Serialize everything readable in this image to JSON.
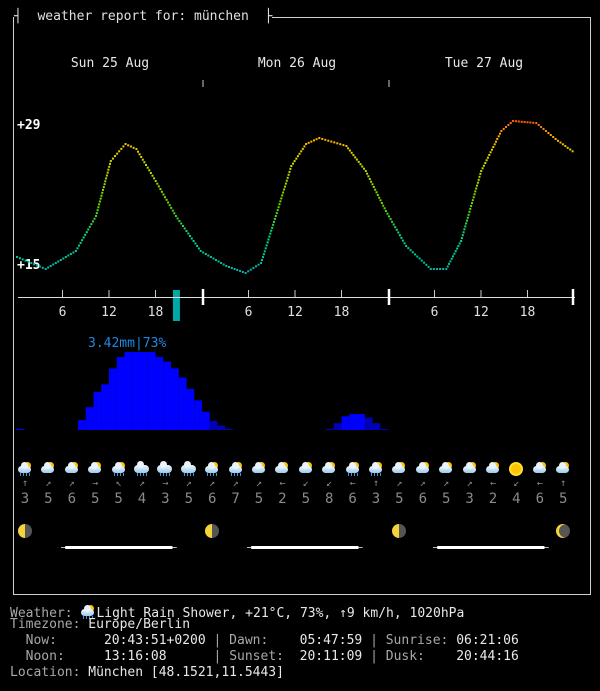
{
  "header": {
    "title": "weather report for: münchen",
    "left_cap": "┤",
    "right_cap": "├"
  },
  "days": [
    "Sun 25 Aug",
    "Mon 26 Aug",
    "Tue 27 Aug"
  ],
  "hour_ticks": [
    "6",
    "12",
    "18"
  ],
  "temp_axis": {
    "max_label": "+29",
    "min_label": "+15",
    "max": 29,
    "min": 15
  },
  "colors": {
    "precip": "#0000ff",
    "precip_dim": "#0000b4",
    "now_marker": "#00a8a8",
    "precip_label": "#1e88e5"
  },
  "chart_data": {
    "type": "line",
    "temperature": {
      "unit": "°C",
      "points": [
        [
          0,
          16
        ],
        [
          3.7,
          14.8
        ],
        [
          7.6,
          16.6
        ],
        [
          10.2,
          20.1
        ],
        [
          12.1,
          25.6
        ],
        [
          14,
          27.3
        ],
        [
          15.4,
          26.8
        ],
        [
          17.9,
          23.6
        ],
        [
          20.5,
          20.1
        ],
        [
          23.7,
          16.6
        ],
        [
          27,
          15.1
        ],
        [
          29.5,
          14.4
        ],
        [
          31.5,
          15.4
        ],
        [
          33.4,
          20.1
        ],
        [
          35.4,
          25.1
        ],
        [
          37.3,
          27.3
        ],
        [
          39,
          27.9
        ],
        [
          42.5,
          27.1
        ],
        [
          45,
          24.6
        ],
        [
          47.6,
          20.6
        ],
        [
          50.2,
          17.1
        ],
        [
          53.4,
          14.8
        ],
        [
          55.4,
          14.8
        ],
        [
          57.3,
          17.6
        ],
        [
          59.9,
          24.6
        ],
        [
          62.5,
          28.6
        ],
        [
          64,
          29.6
        ],
        [
          67,
          29.4
        ],
        [
          69.5,
          27.8
        ],
        [
          72,
          26.4
        ]
      ]
    },
    "precipitation": {
      "unit": "mm",
      "max_label": "3.42mm|73%",
      "max": 3.42,
      "hourly": [
        0.05,
        0,
        0,
        0,
        0,
        0,
        0,
        0,
        0.44,
        1.0,
        1.67,
        2.0,
        2.7,
        3.2,
        3.42,
        3.42,
        3.42,
        3.42,
        3.2,
        3.0,
        2.7,
        2.3,
        1.8,
        1.3,
        0.8,
        0.4,
        0.2,
        0.05,
        0,
        0,
        0,
        0,
        0,
        0,
        0,
        0,
        0,
        0,
        0,
        0,
        0.05,
        0.3,
        0.6,
        0.7,
        0.7,
        0.55,
        0.3,
        0.05
      ]
    },
    "now_hour": 20.7
  },
  "forecast": {
    "icons": [
      "light-rain-shower",
      "partly-cloudy",
      "partly-cloudy",
      "partly-cloudy",
      "light-rain-shower",
      "rain",
      "rain",
      "rain",
      "light-rain-shower",
      "light-rain-shower",
      "partly-cloudy",
      "partly-cloudy",
      "partly-cloudy",
      "partly-cloudy",
      "light-rain-shower",
      "light-rain-shower",
      "partly-cloudy",
      "partly-cloudy",
      "partly-cloudy",
      "partly-cloudy",
      "partly-cloudy",
      "sunny",
      "partly-cloudy",
      "partly-cloudy"
    ],
    "wind_dirs": [
      "↑",
      "↗",
      "↗",
      "→",
      "↖",
      "↗",
      "→",
      "↗",
      "↗",
      "↗",
      "↗",
      "←",
      "↙",
      "↙",
      "←",
      "↑",
      "↗",
      "↗",
      "↗",
      "↗",
      "←",
      "↙",
      "←",
      "↑"
    ],
    "wind_speeds": [
      "3",
      "5",
      "6",
      "5",
      "5",
      "4",
      "3",
      "5",
      "6",
      "7",
      "5",
      "2",
      "5",
      "8",
      "6",
      "3",
      "5",
      "6",
      "5",
      "3",
      "2",
      "4",
      "6",
      "5"
    ]
  },
  "moon_phases": [
    "last-quarter",
    "last-quarter",
    "last-quarter",
    "waning-crescent"
  ],
  "info": {
    "weather_label": "Weather:",
    "weather_value": "Light Rain Shower, +21°C, 73%, ↑9 km/h, 1020hPa",
    "timezone_label": "Timezone:",
    "timezone_value": "Europe/Berlin",
    "now_label": "Now:",
    "now_value": "20:43:51+0200",
    "dawn_label": "Dawn:",
    "dawn_value": "05:47:59",
    "sunrise_label": "Sunrise:",
    "sunrise_value": "06:21:06",
    "noon_label": "Noon:",
    "noon_value": "13:16:08",
    "sunset_label": "Sunset:",
    "sunset_value": "20:11:09",
    "dusk_label": "Dusk:",
    "dusk_value": "20:44:16",
    "location_label": "Location:",
    "location_value": "München [48.1521,11.5443]",
    "sep": "|"
  }
}
